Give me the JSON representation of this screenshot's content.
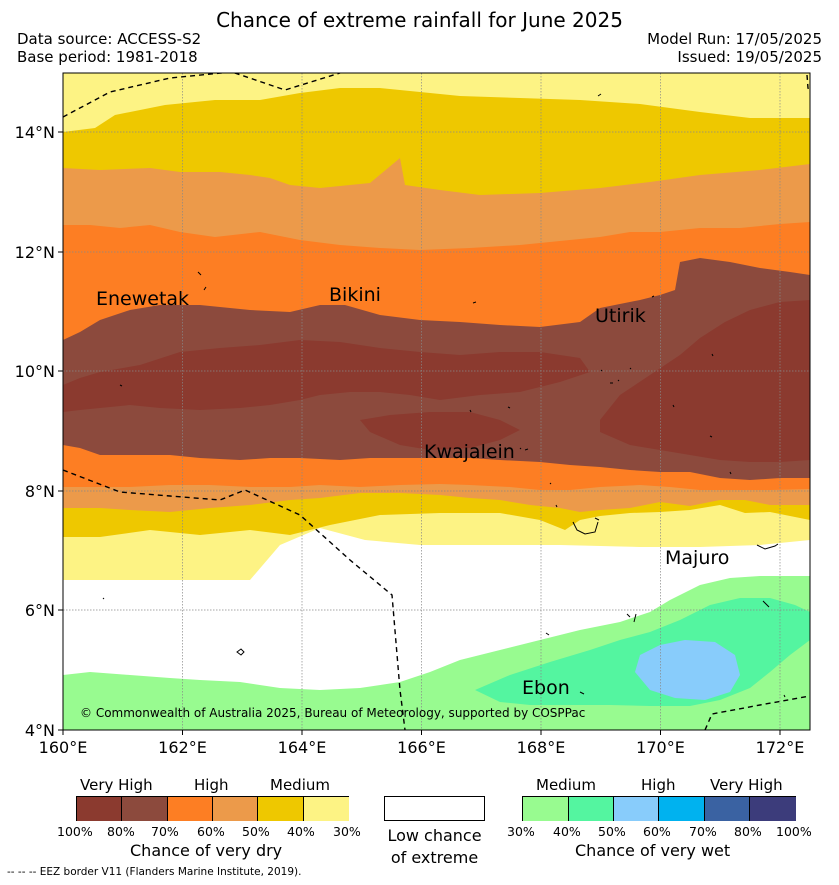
{
  "title": "Chance of extreme rainfall for June 2025",
  "header": {
    "data_source": "Data source: ACCESS-S2",
    "base_period": "Base period: 1981-2018",
    "model_run": "Model Run: 17/05/2025",
    "issued": "Issued: 19/05/2025"
  },
  "axes": {
    "lat_ticks": [
      "14°N",
      "12°N",
      "10°N",
      "8°N",
      "6°N",
      "4°N"
    ],
    "lon_ticks": [
      "160°E",
      "162°E",
      "164°E",
      "166°E",
      "168°E",
      "170°E",
      "172°E"
    ]
  },
  "places": [
    "Enewetak",
    "Bikini",
    "Utirik",
    "Kwajalein",
    "Majuro",
    "Ebon"
  ],
  "copyright": "© Commonwealth of Australia 2025, Bureau of Meteorology, supported by COSPPac",
  "colors": {
    "dry_100_80": "#8b3a2f",
    "dry_80_70": "#8c4a3d",
    "dry_70_60": "#fd7e23",
    "dry_60_50": "#ec9a4a",
    "dry_50_40": "#eec800",
    "dry_40_30": "#fdf384",
    "neutral": "#ffffff",
    "wet_30_40": "#98fb90",
    "wet_40_50": "#54f5a0",
    "wet_50_60": "#88ccfb",
    "wet_60_70": "#00b2ef",
    "wet_70_80": "#3a62a2",
    "wet_80_100": "#3c3c7b"
  },
  "legend": {
    "dry": {
      "categories": [
        "Very High",
        "High",
        "Medium"
      ],
      "percents": [
        "100%",
        "80%",
        "70%",
        "60%",
        "50%",
        "40%",
        "30%"
      ],
      "title": "Chance of very dry"
    },
    "neutral": {
      "line1": "Low chance",
      "line2": "of extreme"
    },
    "wet": {
      "categories": [
        "Medium",
        "High",
        "Very High"
      ],
      "percents": [
        "30%",
        "40%",
        "50%",
        "60%",
        "70%",
        "80%",
        "100%"
      ],
      "title": "Chance of very wet"
    }
  },
  "eez_note": "--  --  -- EEZ border V11 (Flanders Marine Institute, 2019)."
}
